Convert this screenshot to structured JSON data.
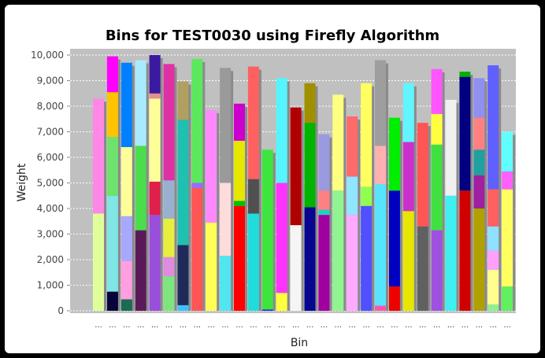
{
  "chart_data": {
    "type": "bar",
    "stacked": true,
    "title": "Bins for TEST0030 using Firefly Algorithm",
    "xlabel": "Bin",
    "ylabel": "Weight",
    "ylim": [
      0,
      10500
    ],
    "y_ticks": [
      "0",
      "1,000",
      "2,000",
      "3,000",
      "4,000",
      "5,000",
      "6,000",
      "7,000",
      "8,000",
      "9,000",
      "10,000"
    ],
    "grid": true,
    "category_label": "...",
    "bins": [
      {
        "segments": [
          {
            "v": 3800,
            "c": "#e0ff9a"
          },
          {
            "v": 4500,
            "c": "#ff88e6"
          }
        ]
      },
      {
        "segments": [
          {
            "v": 750,
            "c": "#06063a"
          },
          {
            "v": 3750,
            "c": "#7fe5e5"
          },
          {
            "v": 2300,
            "c": "#6de26d"
          },
          {
            "v": 1750,
            "c": "#ffc300"
          },
          {
            "v": 1400,
            "c": "#ff00ff"
          }
        ]
      },
      {
        "segments": [
          {
            "v": 450,
            "c": "#1a6b52"
          },
          {
            "v": 1500,
            "c": "#ff9ee0"
          },
          {
            "v": 1750,
            "c": "#a8a8ff"
          },
          {
            "v": 2700,
            "c": "#ffff99"
          },
          {
            "v": 3300,
            "c": "#0080ff"
          }
        ]
      },
      {
        "segments": [
          {
            "v": 3150,
            "c": "#5a1a5a"
          },
          {
            "v": 3300,
            "c": "#4bdd4b"
          },
          {
            "v": 3350,
            "c": "#aaeaff"
          }
        ]
      },
      {
        "segments": [
          {
            "v": 3750,
            "c": "#9a4fdb"
          },
          {
            "v": 1300,
            "c": "#e0204a"
          },
          {
            "v": 3250,
            "c": "#ffff9a"
          },
          {
            "v": 200,
            "c": "#e59090"
          },
          {
            "v": 1500,
            "c": "#3a1aa0"
          }
        ]
      },
      {
        "segments": [
          {
            "v": 1350,
            "c": "#7ee57e"
          },
          {
            "v": 750,
            "c": "#e08ae0"
          },
          {
            "v": 1500,
            "c": "#e6ef40"
          },
          {
            "v": 1500,
            "c": "#9ab0d0"
          },
          {
            "v": 4550,
            "c": "#e030a6"
          }
        ]
      },
      {
        "segments": [
          {
            "v": 220,
            "c": "#40c0ff"
          },
          {
            "v": 2350,
            "c": "#202a5a"
          },
          {
            "v": 4900,
            "c": "#20c0b0"
          },
          {
            "v": 1500,
            "c": "#b0a060"
          }
        ]
      },
      {
        "segments": [
          {
            "v": 4800,
            "c": "#ff5555"
          },
          {
            "v": 200,
            "c": "#9a6aff"
          },
          {
            "v": 4850,
            "c": "#5ce85c"
          }
        ]
      },
      {
        "segments": [
          {
            "v": 3450,
            "c": "#ffff55"
          },
          {
            "v": 4400,
            "c": "#ff88ff"
          }
        ]
      },
      {
        "segments": [
          {
            "v": 2150,
            "c": "#50e5f0"
          },
          {
            "v": 2850,
            "c": "#ffdcdc"
          },
          {
            "v": 4500,
            "c": "#9a9a9a"
          }
        ]
      },
      {
        "segments": [
          {
            "v": 4100,
            "c": "#ff0000"
          },
          {
            "v": 200,
            "c": "#00c000"
          },
          {
            "v": 2350,
            "c": "#e6e600"
          },
          {
            "v": 1450,
            "c": "#cc00cc"
          }
        ]
      },
      {
        "segments": [
          {
            "v": 3800,
            "c": "#20dcdc"
          },
          {
            "v": 1350,
            "c": "#505050"
          },
          {
            "v": 4400,
            "c": "#ff6060"
          }
        ]
      },
      {
        "segments": [
          {
            "v": 50,
            "c": "#2020ff"
          },
          {
            "v": 6250,
            "c": "#3de53d"
          }
        ]
      },
      {
        "segments": [
          {
            "v": 700,
            "c": "#ffff3c"
          },
          {
            "v": 4300,
            "c": "#ff33ff"
          },
          {
            "v": 4100,
            "c": "#55f5ff"
          }
        ]
      },
      {
        "segments": [
          {
            "v": 3350,
            "c": "#f5f5f5"
          },
          {
            "v": 4600,
            "c": "#b00000"
          }
        ]
      },
      {
        "segments": [
          {
            "v": 4050,
            "c": "#06068e"
          },
          {
            "v": 3300,
            "c": "#00b400"
          },
          {
            "v": 1550,
            "c": "#a09000"
          }
        ]
      },
      {
        "segments": [
          {
            "v": 3750,
            "c": "#a000a0"
          },
          {
            "v": 200,
            "c": "#20d0c0"
          },
          {
            "v": 750,
            "c": "#ff8080"
          },
          {
            "v": 2200,
            "c": "#9a9ae0"
          }
        ]
      },
      {
        "segments": [
          {
            "v": 4700,
            "c": "#90f590"
          },
          {
            "v": 3750,
            "c": "#ffff80"
          }
        ]
      },
      {
        "segments": [
          {
            "v": 3750,
            "c": "#ffaaff"
          },
          {
            "v": 1500,
            "c": "#90e5ff"
          },
          {
            "v": 2350,
            "c": "#ff6a6a"
          }
        ]
      },
      {
        "segments": [
          {
            "v": 4100,
            "c": "#5050ff"
          },
          {
            "v": 750,
            "c": "#90ff50"
          },
          {
            "v": 4050,
            "c": "#ffff60"
          }
        ]
      },
      {
        "segments": [
          {
            "v": 200,
            "c": "#ff55aa"
          },
          {
            "v": 4750,
            "c": "#55e5ff"
          },
          {
            "v": 1500,
            "c": "#ffb0b0"
          },
          {
            "v": 3350,
            "c": "#9e9e9e"
          }
        ]
      },
      {
        "segments": [
          {
            "v": 950,
            "c": "#ee0000"
          },
          {
            "v": 3750,
            "c": "#0000c0"
          },
          {
            "v": 2850,
            "c": "#00ee00"
          }
        ]
      },
      {
        "segments": [
          {
            "v": 3900,
            "c": "#e6e600"
          },
          {
            "v": 2700,
            "c": "#cc30cc"
          },
          {
            "v": 2300,
            "c": "#60f5ff"
          }
        ]
      },
      {
        "segments": [
          {
            "v": 3300,
            "c": "#606060"
          },
          {
            "v": 4050,
            "c": "#ff5555"
          }
        ]
      },
      {
        "segments": [
          {
            "v": 3150,
            "c": "#a050e0"
          },
          {
            "v": 3350,
            "c": "#40e040"
          },
          {
            "v": 1200,
            "c": "#ffff40"
          },
          {
            "v": 1750,
            "c": "#ff55ff"
          }
        ]
      },
      {
        "segments": [
          {
            "v": 4500,
            "c": "#40f0f0"
          },
          {
            "v": 3750,
            "c": "#f0f0f0"
          }
        ]
      },
      {
        "segments": [
          {
            "v": 4700,
            "c": "#d00000"
          },
          {
            "v": 4450,
            "c": "#000080"
          },
          {
            "v": 200,
            "c": "#00b000"
          }
        ]
      },
      {
        "segments": [
          {
            "v": 4000,
            "c": "#b0a000"
          },
          {
            "v": 1300,
            "c": "#a020a0"
          },
          {
            "v": 1000,
            "c": "#20a0a0"
          },
          {
            "v": 1250,
            "c": "#ff8080"
          },
          {
            "v": 1550,
            "c": "#9090f0"
          }
        ]
      },
      {
        "segments": [
          {
            "v": 250,
            "c": "#90f090"
          },
          {
            "v": 1350,
            "c": "#ffff90"
          },
          {
            "v": 750,
            "c": "#ffa0ff"
          },
          {
            "v": 950,
            "c": "#90e0ff"
          },
          {
            "v": 1450,
            "c": "#ff6060"
          },
          {
            "v": 4850,
            "c": "#6060ff"
          }
        ]
      },
      {
        "segments": [
          {
            "v": 950,
            "c": "#60f060"
          },
          {
            "v": 3800,
            "c": "#ffff60"
          },
          {
            "v": 700,
            "c": "#ff60ff"
          },
          {
            "v": 1550,
            "c": "#60ffff"
          }
        ]
      }
    ]
  }
}
